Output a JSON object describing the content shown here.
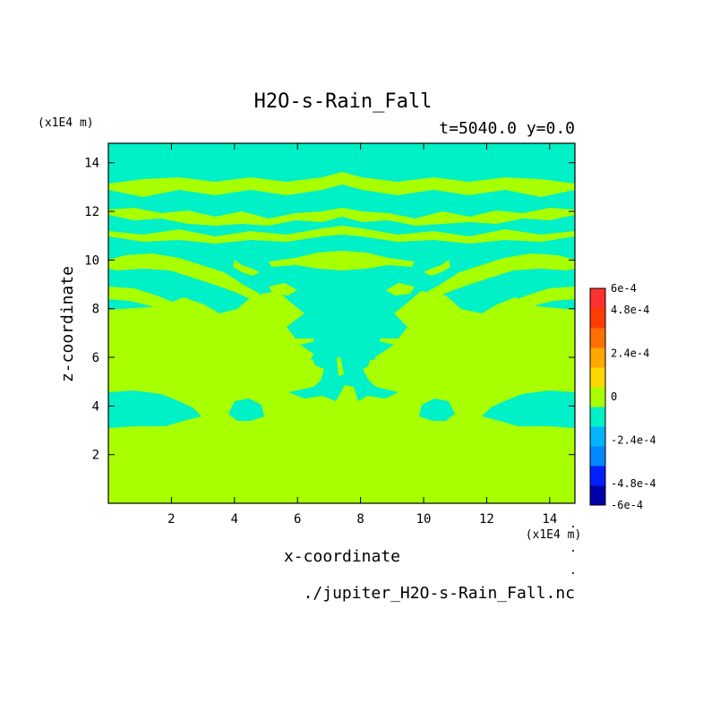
{
  "chart_data": {
    "type": "heatmap",
    "title": "H2O-s-Rain_Fall",
    "subtitle": "t=5040.0 y=0.0",
    "xlabel": "x-coordinate",
    "ylabel": "z-coordinate",
    "x_unit": "(x1E4 m)",
    "y_unit": "(x1E4 m)",
    "footer": "./jupiter_H2O-s-Rain_Fall.nc",
    "xlim": [
      0,
      14.8
    ],
    "ylim": [
      0,
      14.8
    ],
    "x_ticks": [
      2,
      4,
      6,
      8,
      10,
      12,
      14
    ],
    "y_ticks": [
      2,
      4,
      6,
      8,
      10,
      12,
      14
    ],
    "colorbar": {
      "min": -0.0006,
      "max": 0.0006,
      "labels": [
        "6e-4",
        "4.8e-4",
        "2.4e-4",
        "0",
        "-2.4e-4",
        "-4.8e-4",
        "-6e-4"
      ],
      "label_values": [
        0.0006,
        0.00048,
        0.00024,
        0,
        -0.00024,
        -0.00048,
        -0.0006
      ],
      "levels": [
        {
          "from": -0.0006,
          "to": -0.00048,
          "color": "#0000a8"
        },
        {
          "from": -0.00048,
          "to": -0.00036,
          "color": "#0020ff"
        },
        {
          "from": -0.00036,
          "to": -0.00024,
          "color": "#0088ff"
        },
        {
          "from": -0.00024,
          "to": -0.00012,
          "color": "#00b4ff"
        },
        {
          "from": -0.00012,
          "to": 0,
          "color": "#00f0c8"
        },
        {
          "from": 0,
          "to": 0.00012,
          "color": "#a8ff00"
        },
        {
          "from": 0.00012,
          "to": 0.00024,
          "color": "#ffd800"
        },
        {
          "from": 0.00024,
          "to": 0.00036,
          "color": "#ffa800"
        },
        {
          "from": 0.00036,
          "to": 0.00048,
          "color": "#ff7000"
        },
        {
          "from": 0.00048,
          "to": 0.0006,
          "color": "#ff3c00"
        },
        {
          "from": 0.0006,
          "to": 0.00072,
          "color": "#ff3030"
        }
      ]
    },
    "field": {
      "background_color": "#a8ff00",
      "dominant_values": {
        "upper_region": "-1e-4 to 0",
        "lower_region": "0 to 1.2e-4"
      },
      "negative_regions": [
        {
          "x": [
            0,
            14.8
          ],
          "z": [
            8.0,
            14.8
          ]
        },
        {
          "x": [
            0,
            14.8
          ],
          "z": [
            3.2,
            4.6
          ]
        },
        {
          "x": [
            5.0,
            10.0
          ],
          "z": [
            3.6,
            8.6
          ]
        }
      ]
    }
  }
}
